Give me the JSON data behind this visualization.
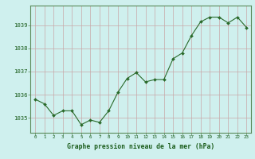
{
  "x": [
    0,
    1,
    2,
    3,
    4,
    5,
    6,
    7,
    8,
    9,
    10,
    11,
    12,
    13,
    14,
    15,
    16,
    17,
    18,
    19,
    20,
    21,
    22,
    23
  ],
  "y": [
    1035.8,
    1035.6,
    1035.1,
    1035.3,
    1035.3,
    1034.7,
    1034.9,
    1034.8,
    1035.3,
    1036.1,
    1036.7,
    1036.95,
    1036.55,
    1036.65,
    1036.65,
    1037.55,
    1037.8,
    1038.55,
    1039.15,
    1039.35,
    1039.35,
    1039.1,
    1039.35,
    1038.9
  ],
  "line_color": "#2a6a2a",
  "marker_color": "#2a6a2a",
  "bg_color": "#cff0ee",
  "grid_color_h": "#c8a8a8",
  "grid_color_v": "#c8a8a8",
  "xlabel": "Graphe pression niveau de la mer (hPa)",
  "xlabel_color": "#1a5c1a",
  "tick_color": "#1a5c1a",
  "ylim": [
    1034.35,
    1039.85
  ],
  "yticks": [
    1035,
    1036,
    1037,
    1038,
    1039
  ],
  "xlim": [
    -0.5,
    23.5
  ],
  "xticks": [
    0,
    1,
    2,
    3,
    4,
    5,
    6,
    7,
    8,
    9,
    10,
    11,
    12,
    13,
    14,
    15,
    16,
    17,
    18,
    19,
    20,
    21,
    22,
    23
  ],
  "spine_color": "#5a8a5a"
}
